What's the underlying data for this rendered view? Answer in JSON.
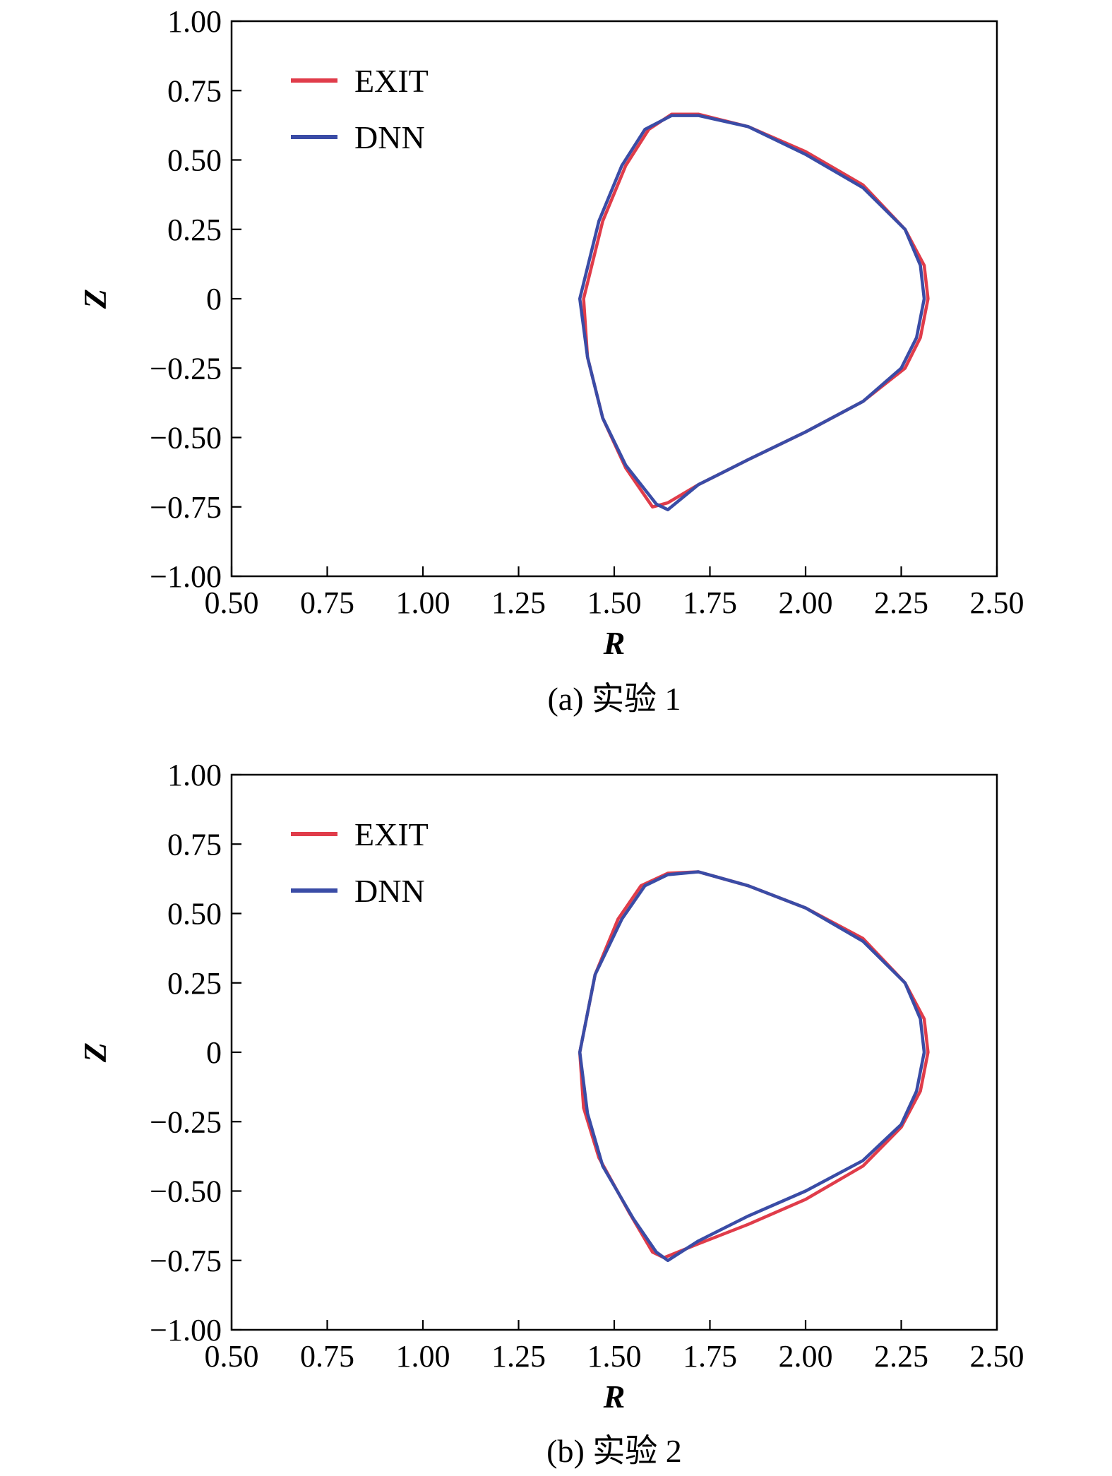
{
  "chart_data": [
    {
      "type": "line",
      "caption": "(a) 实验 1",
      "xlabel": "R",
      "ylabel": "Z",
      "xlim": [
        0.5,
        2.5
      ],
      "ylim": [
        -1.0,
        1.0
      ],
      "xticks": [
        "0.50",
        "0.75",
        "1.00",
        "1.25",
        "1.50",
        "1.75",
        "2.00",
        "2.25",
        "2.50"
      ],
      "yticks": [
        "1.00",
        "0.75",
        "0.50",
        "0.25",
        "0",
        "−0.25",
        "−0.50",
        "−0.75",
        "−1.00"
      ],
      "legend_position": "top-left",
      "series": [
        {
          "name": "EXIT",
          "color": "#e03c4a",
          "x": [
            1.42,
            1.47,
            1.53,
            1.59,
            1.65,
            1.72,
            1.85,
            2.0,
            2.15,
            2.26,
            2.31,
            2.32,
            2.3,
            2.26,
            2.15,
            2.0,
            1.85,
            1.72,
            1.64,
            1.6,
            1.53,
            1.47,
            1.43,
            1.42
          ],
          "y": [
            0.0,
            0.28,
            0.48,
            0.61,
            0.665,
            0.665,
            0.62,
            0.53,
            0.41,
            0.25,
            0.12,
            0.0,
            -0.14,
            -0.25,
            -0.37,
            -0.48,
            -0.58,
            -0.67,
            -0.735,
            -0.75,
            -0.61,
            -0.43,
            -0.21,
            0.0
          ]
        },
        {
          "name": "DNN",
          "color": "#3a4ca6",
          "x": [
            1.41,
            1.46,
            1.52,
            1.58,
            1.65,
            1.72,
            1.85,
            2.0,
            2.15,
            2.26,
            2.3,
            2.31,
            2.29,
            2.25,
            2.15,
            2.0,
            1.85,
            1.72,
            1.64,
            1.61,
            1.53,
            1.47,
            1.43,
            1.41
          ],
          "y": [
            0.0,
            0.28,
            0.48,
            0.61,
            0.66,
            0.66,
            0.62,
            0.52,
            0.4,
            0.25,
            0.12,
            0.0,
            -0.14,
            -0.25,
            -0.37,
            -0.48,
            -0.58,
            -0.67,
            -0.76,
            -0.74,
            -0.6,
            -0.43,
            -0.21,
            0.0
          ]
        }
      ]
    },
    {
      "type": "line",
      "caption": "(b) 实验 2",
      "xlabel": "R",
      "ylabel": "Z",
      "xlim": [
        0.5,
        2.5
      ],
      "ylim": [
        -1.0,
        1.0
      ],
      "xticks": [
        "0.50",
        "0.75",
        "1.00",
        "1.25",
        "1.50",
        "1.75",
        "2.00",
        "2.25",
        "2.50"
      ],
      "yticks": [
        "1.00",
        "0.75",
        "0.50",
        "0.25",
        "0",
        "−0.25",
        "−0.50",
        "−0.75",
        "−1.00"
      ],
      "legend_position": "top-left",
      "series": [
        {
          "name": "EXIT",
          "color": "#e03c4a",
          "x": [
            1.41,
            1.45,
            1.51,
            1.57,
            1.64,
            1.72,
            1.85,
            2.0,
            2.15,
            2.26,
            2.31,
            2.32,
            2.3,
            2.25,
            2.15,
            2.0,
            1.85,
            1.72,
            1.63,
            1.6,
            1.54,
            1.46,
            1.42,
            1.41
          ],
          "y": [
            0.0,
            0.28,
            0.48,
            0.6,
            0.645,
            0.65,
            0.6,
            0.52,
            0.41,
            0.25,
            0.12,
            0.0,
            -0.14,
            -0.27,
            -0.41,
            -0.53,
            -0.62,
            -0.69,
            -0.74,
            -0.72,
            -0.58,
            -0.38,
            -0.2,
            0.0
          ]
        },
        {
          "name": "DNN",
          "color": "#3a4ca6",
          "x": [
            1.41,
            1.45,
            1.52,
            1.58,
            1.64,
            1.72,
            1.85,
            2.0,
            2.15,
            2.26,
            2.3,
            2.31,
            2.29,
            2.25,
            2.15,
            2.0,
            1.85,
            1.72,
            1.64,
            1.61,
            1.55,
            1.47,
            1.43,
            1.41
          ],
          "y": [
            0.0,
            0.28,
            0.48,
            0.6,
            0.64,
            0.65,
            0.6,
            0.52,
            0.4,
            0.25,
            0.12,
            0.0,
            -0.14,
            -0.26,
            -0.39,
            -0.5,
            -0.59,
            -0.68,
            -0.75,
            -0.72,
            -0.6,
            -0.41,
            -0.22,
            0.0
          ]
        }
      ]
    }
  ]
}
